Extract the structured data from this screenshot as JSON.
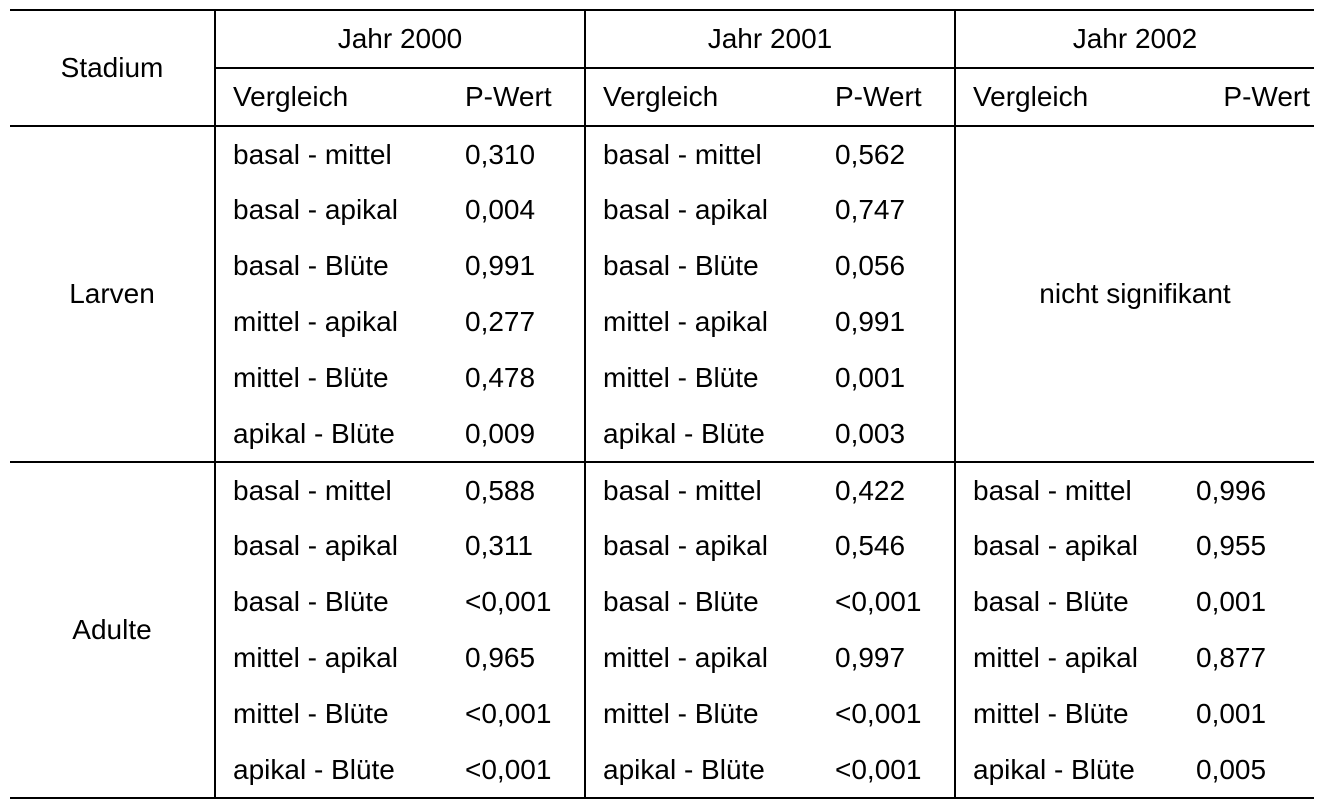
{
  "table": {
    "stadium_header": "Stadium",
    "years": [
      "Jahr 2000",
      "Jahr 2001",
      "Jahr 2002"
    ],
    "sub_headers": {
      "comparison": "Vergleich",
      "p_value": "P-Wert"
    },
    "groups": [
      {
        "stadium": "Larven",
        "rows": [
          {
            "c2000": "basal - mittel",
            "p2000": "0,310",
            "c2001": "basal - mittel",
            "p2001": "0,562"
          },
          {
            "c2000": "basal - apikal",
            "p2000": "0,004",
            "c2001": "basal - apikal",
            "p2001": "0,747"
          },
          {
            "c2000": "basal - Blüte",
            "p2000": "0,991",
            "c2001": "basal - Blüte",
            "p2001": "0,056"
          },
          {
            "c2000": "mittel - apikal",
            "p2000": "0,277",
            "c2001": "mittel - apikal",
            "p2001": "0,991"
          },
          {
            "c2000": "mittel - Blüte",
            "p2000": "0,478",
            "c2001": "mittel - Blüte",
            "p2001": "0,001"
          },
          {
            "c2000": "apikal - Blüte",
            "p2000": "0,009",
            "c2001": "apikal - Blüte",
            "p2001": "0,003"
          }
        ],
        "note_2002": "nicht signifikant"
      },
      {
        "stadium": "Adulte",
        "rows": [
          {
            "c2000": "basal - mittel",
            "p2000": "0,588",
            "c2001": "basal - mittel",
            "p2001": "0,422",
            "c2002": "basal - mittel",
            "p2002": "0,996"
          },
          {
            "c2000": "basal - apikal",
            "p2000": "0,311",
            "c2001": "basal - apikal",
            "p2001": "0,546",
            "c2002": "basal - apikal",
            "p2002": "0,955"
          },
          {
            "c2000": "basal - Blüte",
            "p2000": "<0,001",
            "c2001": "basal - Blüte",
            "p2001": "<0,001",
            "c2002": "basal - Blüte",
            "p2002": "0,001"
          },
          {
            "c2000": "mittel - apikal",
            "p2000": "0,965",
            "c2001": "mittel - apikal",
            "p2001": "0,997",
            "c2002": "mittel - apikal",
            "p2002": "0,877"
          },
          {
            "c2000": "mittel - Blüte",
            "p2000": "<0,001",
            "c2001": "mittel - Blüte",
            "p2001": "<0,001",
            "c2002": "mittel - Blüte",
            "p2002": "0,001"
          },
          {
            "c2000": "apikal - Blüte",
            "p2000": "<0,001",
            "c2001": "apikal - Blüte",
            "p2001": "<0,001",
            "c2002": "apikal - Blüte",
            "p2002": "0,005"
          }
        ]
      }
    ]
  }
}
